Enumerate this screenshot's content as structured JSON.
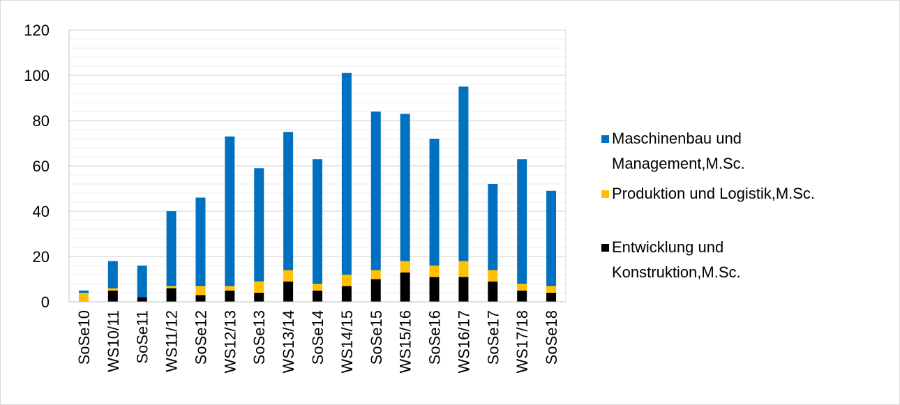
{
  "chart_data": {
    "type": "bar",
    "stacked": true,
    "title": "",
    "xlabel": "",
    "ylabel": "",
    "ylim": [
      0,
      120
    ],
    "yticks": [
      0,
      20,
      40,
      60,
      80,
      100,
      120
    ],
    "grid": true,
    "legend_position": "right",
    "categories": [
      "SoSe10",
      "WS10/11",
      "SoSe11",
      "WS11/12",
      "SoSe12",
      "WS12/13",
      "SoSe13",
      "WS13/14",
      "SoSe14",
      "WS14/15",
      "SoSe15",
      "WS15/16",
      "SoSe16",
      "WS16/17",
      "SoSe17",
      "WS17/18",
      "SoSe18"
    ],
    "series": [
      {
        "name": "Entwicklung und Konstruktion,M.Sc.",
        "legend_lines": [
          "Entwicklung und",
          "Konstruktion,M.Sc."
        ],
        "color": "#000000",
        "values": [
          0,
          5,
          2,
          6,
          3,
          5,
          4,
          9,
          5,
          7,
          10,
          13,
          11,
          11,
          9,
          5,
          4
        ]
      },
      {
        "name": "Produktion und Logistik,M.Sc.",
        "legend_lines": [
          "Produktion und Logistik,M.Sc."
        ],
        "color": "#ffc000",
        "values": [
          4,
          1,
          0,
          1,
          4,
          2,
          5,
          5,
          3,
          5,
          4,
          5,
          5,
          7,
          5,
          3,
          3
        ]
      },
      {
        "name": "Maschinenbau und Management,M.Sc.",
        "legend_lines": [
          "Maschinenbau und",
          "Management,M.Sc."
        ],
        "color": "#0070c0",
        "values": [
          1,
          12,
          14,
          33,
          39,
          66,
          50,
          61,
          55,
          89,
          70,
          65,
          56,
          77,
          38,
          55,
          42
        ]
      }
    ]
  }
}
